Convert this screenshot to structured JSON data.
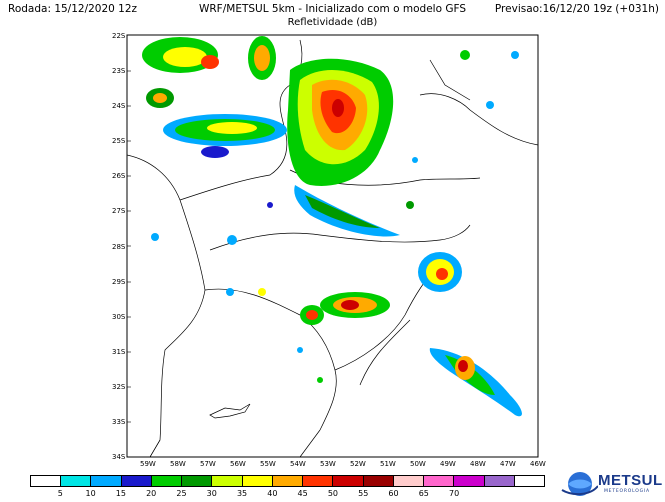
{
  "header": {
    "left": "Rodada: 15/12/2020 12z",
    "center": "WRF/METSUL 5km - Inicializado com o modelo GFS",
    "right": "Previsao:16/12/20 19z (+031h)",
    "subtitle": "Refletividade (dB)"
  },
  "map": {
    "lat_labels": [
      "22S",
      "23S",
      "24S",
      "25S",
      "26S",
      "27S",
      "28S",
      "29S",
      "30S",
      "31S",
      "32S",
      "33S",
      "34S"
    ],
    "lon_labels": [
      "59W",
      "58W",
      "57W",
      "56W",
      "55W",
      "54W",
      "53W",
      "52W",
      "51W",
      "50W",
      "49W",
      "48W",
      "47W",
      "46W"
    ]
  },
  "colorbar": {
    "colors": [
      "#ffffff",
      "#00e5e5",
      "#00aaff",
      "#1a1acc",
      "#00cc00",
      "#009900",
      "#ccff00",
      "#ffff00",
      "#ffaa00",
      "#ff3300",
      "#cc0000",
      "#990000",
      "#ffcccc",
      "#ff66cc",
      "#cc00cc",
      "#9966cc",
      "#ffffff"
    ],
    "labels": [
      "5",
      "10",
      "15",
      "20",
      "25",
      "30",
      "35",
      "40",
      "45",
      "50",
      "55",
      "60",
      "65",
      "70"
    ]
  },
  "logo": {
    "name": "METSUL",
    "tagline": "METEOROLOGIA"
  }
}
